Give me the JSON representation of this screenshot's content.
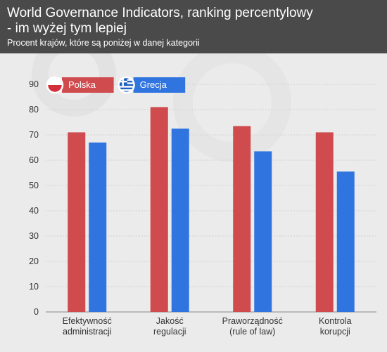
{
  "header": {
    "title_line1": "World Governance Indicators, ranking percentylowy",
    "title_line2": "- im wyżej tym lepiej",
    "subtitle": "Procent krajów, które są poniżej w danej kategorii"
  },
  "colors": {
    "header_bg": "#4a4a4a",
    "plot_bg": "#ebebeb",
    "polska": "#cf4b4e",
    "grecja": "#2f74df"
  },
  "chart_data": {
    "type": "bar",
    "title": "World Governance Indicators, ranking percentylowy - im wyżej tym lepiej",
    "subtitle": "Procent krajów, które są poniżej w danej kategorii",
    "categories": [
      [
        "Efektywność",
        "administracji"
      ],
      [
        "Jakość",
        "regulacji"
      ],
      [
        "Praworządność",
        "(rule of law)"
      ],
      [
        "Kontrola",
        "korupcji"
      ]
    ],
    "series": [
      {
        "name": "Polska",
        "color": "#cf4b4e",
        "flag_icon": "poland-flag-icon",
        "values": [
          71,
          81,
          73.5,
          71
        ]
      },
      {
        "name": "Grecja",
        "color": "#2f74df",
        "flag_icon": "greece-flag-icon",
        "values": [
          67,
          72.5,
          63.5,
          55.5
        ]
      }
    ],
    "ylim": [
      0,
      90
    ],
    "yticks": [
      0,
      10,
      20,
      30,
      40,
      50,
      60,
      70,
      80,
      90
    ],
    "grid": true,
    "legend": "top-left"
  }
}
